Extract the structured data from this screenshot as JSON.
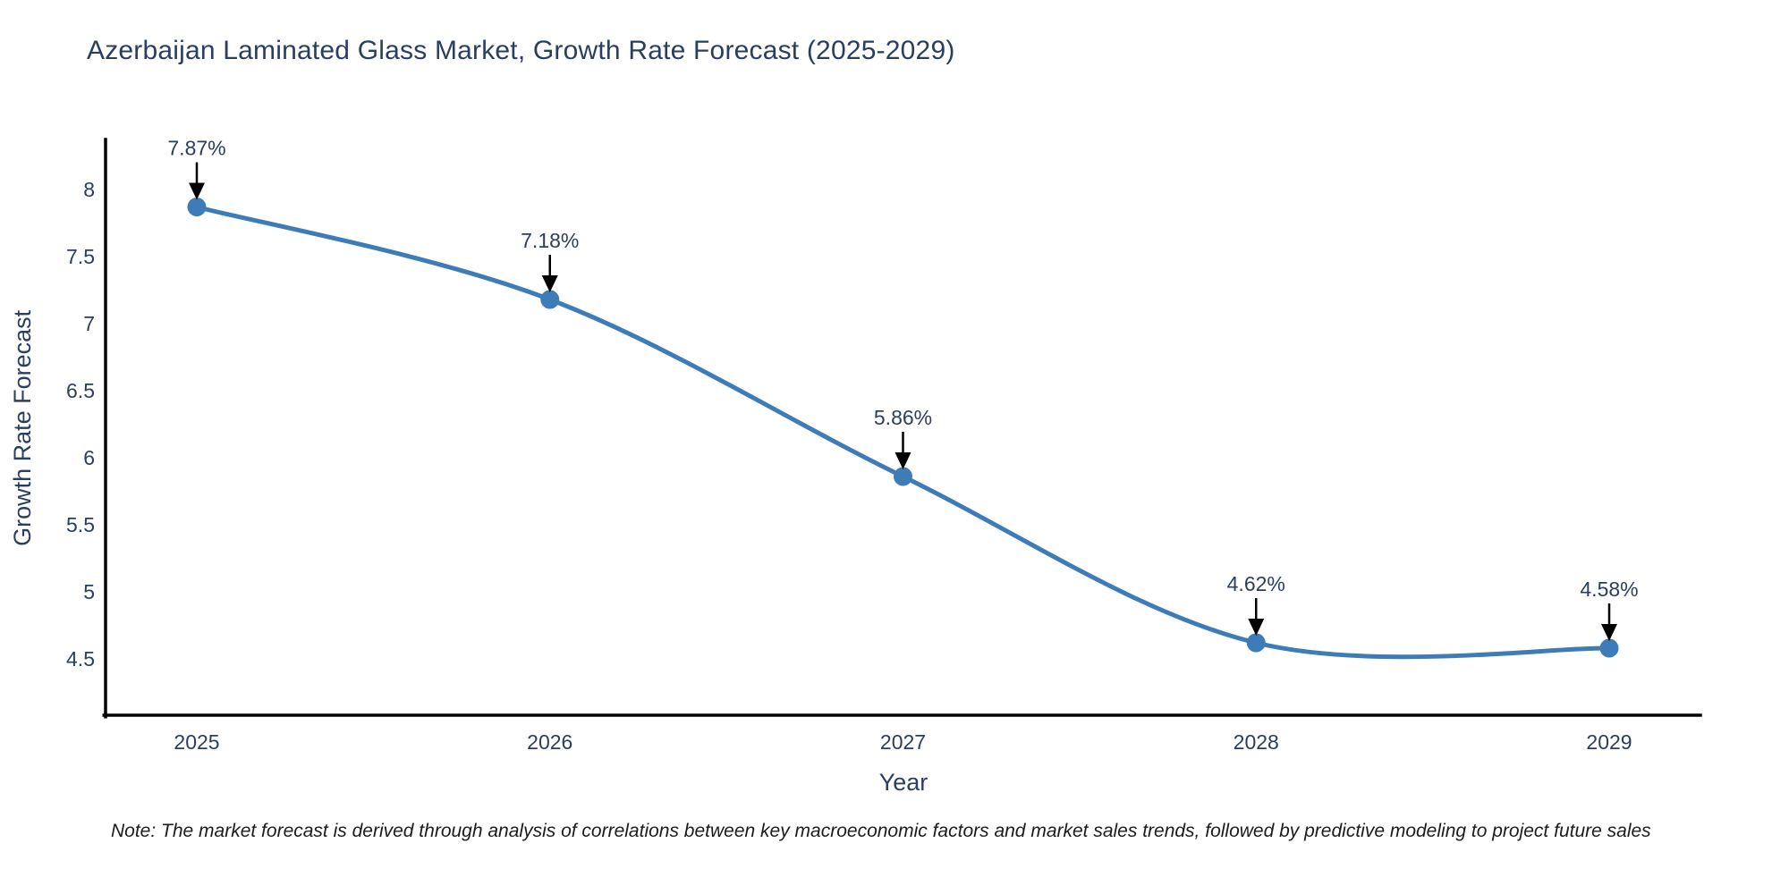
{
  "title": "Azerbaijan Laminated Glass Market, Growth Rate Forecast (2025-2029)",
  "note": "Note: The market forecast is derived through analysis of correlations between key macroeconomic factors and market sales trends, followed by predictive modeling to project future sales",
  "chart_data": {
    "type": "line",
    "title": "Azerbaijan Laminated Glass Market, Growth Rate Forecast (2025-2029)",
    "xlabel": "Year",
    "ylabel": "Growth Rate Forecast",
    "x": [
      2025,
      2026,
      2027,
      2028,
      2029
    ],
    "y": [
      7.87,
      7.18,
      5.86,
      4.62,
      4.58
    ],
    "point_labels": [
      "7.87%",
      "7.18%",
      "5.86%",
      "4.62%",
      "4.58%"
    ],
    "x_tick_labels": [
      "2025",
      "2026",
      "2027",
      "2028",
      "2029"
    ],
    "y_ticks": [
      8,
      7.5,
      7,
      6.5,
      6,
      5.5,
      5,
      4.5
    ],
    "y_tick_labels": [
      "8",
      "7.5",
      "7",
      "6.5",
      "6",
      "5.5",
      "5",
      "4.5"
    ],
    "ylim": [
      4.08,
      8.38
    ],
    "xlim": [
      2024.74,
      2029.26
    ],
    "grid": false,
    "legend": "none",
    "line_color": "#3E7CB8",
    "marker_color": "#3E7CB8",
    "annotation_arrow_color": "#000000",
    "axis_color": "#000000",
    "text_color": "#2a3f5f",
    "background_color": "#ffffff"
  }
}
